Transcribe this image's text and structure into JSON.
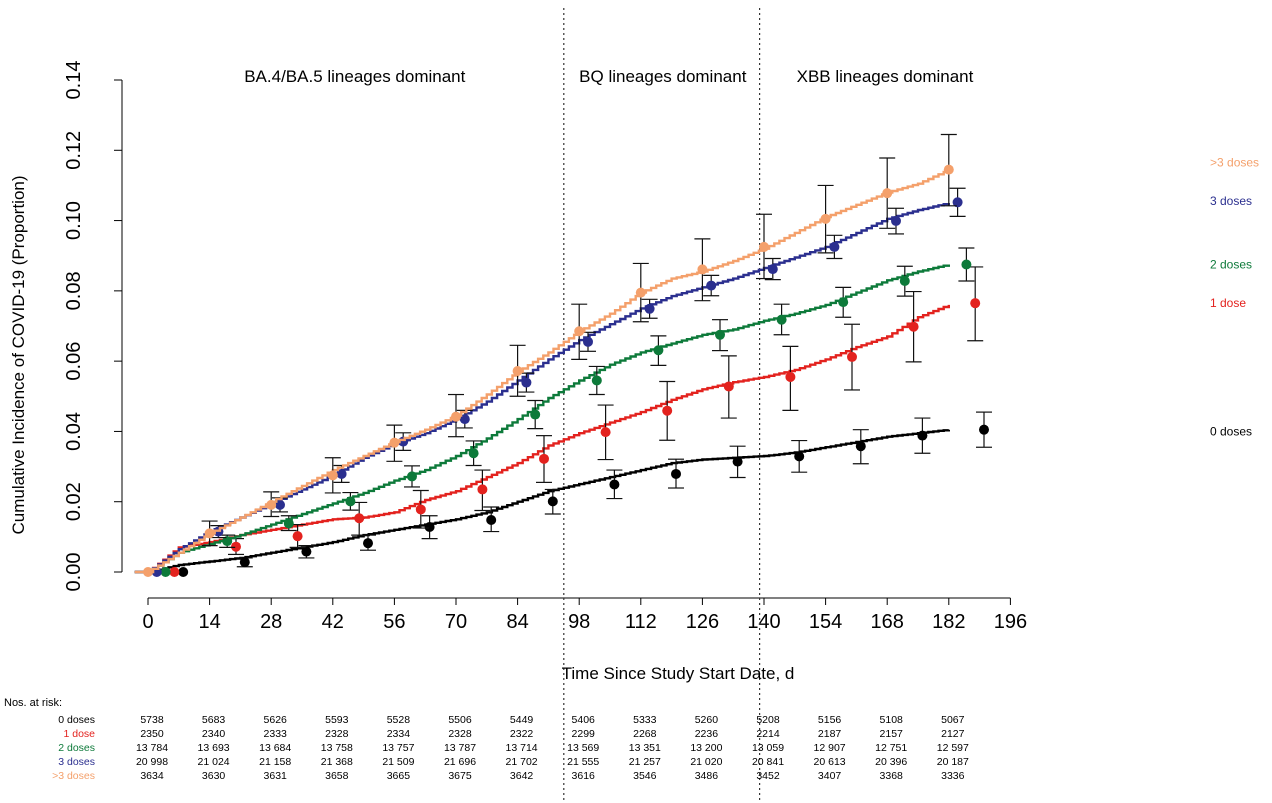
{
  "chart_data": {
    "type": "line",
    "xlabel": "Time Since Study Start Date, d",
    "ylabel": "Cumulative Incidence of COVID-19 (Proportion)",
    "xlim": [
      0,
      196
    ],
    "ylim": [
      0,
      0.14
    ],
    "x_ticks": [
      0,
      14,
      28,
      42,
      56,
      70,
      84,
      98,
      112,
      126,
      140,
      154,
      168,
      182,
      196
    ],
    "y_ticks": [
      "0.00",
      "0.02",
      "0.04",
      "0.06",
      "0.08",
      "0.10",
      "0.12",
      "0.14"
    ],
    "grid": false,
    "legend": "direct labels at right end of lines",
    "period_dividers": [
      94.5,
      139
    ],
    "periods": [
      {
        "label": "BA.4/BA.5 lineages dominant",
        "center": 47
      },
      {
        "label": "BQ lineages dominant",
        "center": 117
      },
      {
        "label": "XBB lineages dominant",
        "center": 167.5
      }
    ],
    "series": [
      {
        "name": "0 doses",
        "color": "#000000",
        "label_y": 0.04,
        "x": [
          0,
          7,
          14,
          21,
          28,
          35,
          42,
          49,
          56,
          63,
          70,
          77,
          84,
          91,
          98,
          105,
          112,
          119,
          126,
          133,
          140,
          147,
          154,
          161,
          168,
          175,
          182
        ],
        "y": [
          0,
          0.002,
          0.003,
          0.004,
          0.0055,
          0.007,
          0.0085,
          0.0105,
          0.012,
          0.0135,
          0.015,
          0.017,
          0.02,
          0.023,
          0.025,
          0.027,
          0.029,
          0.031,
          0.032,
          0.0325,
          0.033,
          0.034,
          0.0355,
          0.037,
          0.0385,
          0.0395,
          0.0405
        ],
        "points": [
          {
            "x": 8,
            "y": 0.0,
            "lo": 0.0,
            "hi": 0.0
          },
          {
            "x": 22,
            "y": 0.0028,
            "lo": 0.0015,
            "hi": 0.004
          },
          {
            "x": 36,
            "y": 0.0058,
            "lo": 0.004,
            "hi": 0.0075
          },
          {
            "x": 50,
            "y": 0.0082,
            "lo": 0.0062,
            "hi": 0.0105
          },
          {
            "x": 64,
            "y": 0.0128,
            "lo": 0.0095,
            "hi": 0.016
          },
          {
            "x": 78,
            "y": 0.0148,
            "lo": 0.0115,
            "hi": 0.0185
          },
          {
            "x": 92,
            "y": 0.0201,
            "lo": 0.0165,
            "hi": 0.0235
          },
          {
            "x": 106,
            "y": 0.0249,
            "lo": 0.0209,
            "hi": 0.029
          },
          {
            "x": 120,
            "y": 0.0279,
            "lo": 0.0239,
            "hi": 0.0321
          },
          {
            "x": 134,
            "y": 0.0314,
            "lo": 0.0269,
            "hi": 0.0358
          },
          {
            "x": 148,
            "y": 0.0329,
            "lo": 0.0284,
            "hi": 0.0374
          },
          {
            "x": 162,
            "y": 0.0358,
            "lo": 0.0308,
            "hi": 0.0405
          },
          {
            "x": 176,
            "y": 0.0388,
            "lo": 0.0338,
            "hi": 0.0438
          },
          {
            "x": 190,
            "y": 0.0405,
            "lo": 0.0355,
            "hi": 0.0455
          }
        ]
      },
      {
        "name": "1 dose",
        "color": "#e3221e",
        "label_y": 0.0765,
        "x": [
          0,
          7,
          14,
          21,
          28,
          35,
          42,
          49,
          56,
          63,
          70,
          77,
          84,
          91,
          98,
          105,
          112,
          119,
          126,
          133,
          140,
          147,
          154,
          161,
          168,
          175,
          182
        ],
        "y": [
          0,
          0.007,
          0.0085,
          0.0105,
          0.012,
          0.0135,
          0.015,
          0.0155,
          0.017,
          0.0205,
          0.023,
          0.027,
          0.031,
          0.036,
          0.0395,
          0.0425,
          0.0455,
          0.049,
          0.052,
          0.054,
          0.0555,
          0.0575,
          0.0605,
          0.064,
          0.067,
          0.0725,
          0.076
        ],
        "points": [
          {
            "x": 6,
            "y": 0.0,
            "lo": 0.0,
            "hi": 0.0
          },
          {
            "x": 20,
            "y": 0.0072,
            "lo": 0.005,
            "hi": 0.0095
          },
          {
            "x": 34,
            "y": 0.0102,
            "lo": 0.007,
            "hi": 0.0135
          },
          {
            "x": 48,
            "y": 0.0153,
            "lo": 0.0105,
            "hi": 0.0198
          },
          {
            "x": 62,
            "y": 0.0178,
            "lo": 0.0125,
            "hi": 0.0232
          },
          {
            "x": 76,
            "y": 0.0235,
            "lo": 0.0175,
            "hi": 0.029
          },
          {
            "x": 90,
            "y": 0.0322,
            "lo": 0.0255,
            "hi": 0.0388
          },
          {
            "x": 104,
            "y": 0.0398,
            "lo": 0.032,
            "hi": 0.0475
          },
          {
            "x": 118,
            "y": 0.0459,
            "lo": 0.0375,
            "hi": 0.0542
          },
          {
            "x": 132,
            "y": 0.0528,
            "lo": 0.0438,
            "hi": 0.0615
          },
          {
            "x": 146,
            "y": 0.0555,
            "lo": 0.046,
            "hi": 0.0642
          },
          {
            "x": 160,
            "y": 0.0612,
            "lo": 0.0518,
            "hi": 0.0705
          },
          {
            "x": 174,
            "y": 0.0698,
            "lo": 0.0598,
            "hi": 0.0798
          },
          {
            "x": 188,
            "y": 0.0765,
            "lo": 0.0658,
            "hi": 0.0868
          }
        ]
      },
      {
        "name": "2 doses",
        "color": "#0d7a3a",
        "label_y": 0.0875,
        "x": [
          0,
          7,
          14,
          21,
          28,
          35,
          42,
          49,
          56,
          63,
          70,
          77,
          84,
          91,
          98,
          105,
          112,
          119,
          126,
          133,
          140,
          147,
          154,
          161,
          168,
          175,
          182
        ],
        "y": [
          0,
          0.0055,
          0.008,
          0.0105,
          0.0135,
          0.0165,
          0.0195,
          0.0225,
          0.026,
          0.029,
          0.033,
          0.038,
          0.0435,
          0.0495,
          0.0545,
          0.059,
          0.0625,
          0.065,
          0.0675,
          0.069,
          0.0715,
          0.0735,
          0.076,
          0.0795,
          0.083,
          0.0855,
          0.0875
        ],
        "points": [
          {
            "x": 4,
            "y": 0.0,
            "lo": 0.0,
            "hi": 0.0
          },
          {
            "x": 18,
            "y": 0.0088,
            "lo": 0.007,
            "hi": 0.0105
          },
          {
            "x": 32,
            "y": 0.0138,
            "lo": 0.0118,
            "hi": 0.016
          },
          {
            "x": 46,
            "y": 0.0201,
            "lo": 0.0176,
            "hi": 0.0226
          },
          {
            "x": 60,
            "y": 0.0272,
            "lo": 0.0242,
            "hi": 0.0302
          },
          {
            "x": 74,
            "y": 0.0338,
            "lo": 0.0303,
            "hi": 0.0373
          },
          {
            "x": 88,
            "y": 0.0448,
            "lo": 0.0408,
            "hi": 0.0488
          },
          {
            "x": 102,
            "y": 0.0545,
            "lo": 0.0505,
            "hi": 0.0585
          },
          {
            "x": 116,
            "y": 0.0631,
            "lo": 0.0588,
            "hi": 0.0672
          },
          {
            "x": 130,
            "y": 0.0675,
            "lo": 0.063,
            "hi": 0.0718
          },
          {
            "x": 144,
            "y": 0.0718,
            "lo": 0.0675,
            "hi": 0.0762
          },
          {
            "x": 158,
            "y": 0.0768,
            "lo": 0.0725,
            "hi": 0.081
          },
          {
            "x": 172,
            "y": 0.0828,
            "lo": 0.0785,
            "hi": 0.087
          },
          {
            "x": 186,
            "y": 0.0875,
            "lo": 0.0828,
            "hi": 0.0922
          }
        ]
      },
      {
        "name": "3 doses",
        "color": "#2b2f8f",
        "label_y": 0.1055,
        "x": [
          0,
          7,
          14,
          21,
          28,
          35,
          42,
          49,
          56,
          63,
          70,
          77,
          84,
          91,
          98,
          105,
          112,
          119,
          126,
          133,
          140,
          147,
          154,
          161,
          168,
          175,
          182
        ],
        "y": [
          0,
          0.0065,
          0.0115,
          0.0155,
          0.0195,
          0.0235,
          0.0275,
          0.0325,
          0.0365,
          0.0395,
          0.0435,
          0.0485,
          0.0545,
          0.0605,
          0.066,
          0.0705,
          0.075,
          0.0785,
          0.081,
          0.0835,
          0.0865,
          0.0895,
          0.0925,
          0.0965,
          0.1005,
          0.103,
          0.105
        ],
        "points": [
          {
            "x": 2,
            "y": 0.0,
            "lo": 0.0,
            "hi": 0.0
          },
          {
            "x": 16,
            "y": 0.0115,
            "lo": 0.0098,
            "hi": 0.0132
          },
          {
            "x": 30,
            "y": 0.0191,
            "lo": 0.0171,
            "hi": 0.0211
          },
          {
            "x": 44,
            "y": 0.0279,
            "lo": 0.0255,
            "hi": 0.0303
          },
          {
            "x": 58,
            "y": 0.0371,
            "lo": 0.0346,
            "hi": 0.0396
          },
          {
            "x": 72,
            "y": 0.0435,
            "lo": 0.041,
            "hi": 0.046
          },
          {
            "x": 86,
            "y": 0.0539,
            "lo": 0.0512,
            "hi": 0.0566
          },
          {
            "x": 100,
            "y": 0.0655,
            "lo": 0.0628,
            "hi": 0.0682
          },
          {
            "x": 114,
            "y": 0.0749,
            "lo": 0.0722,
            "hi": 0.0776
          },
          {
            "x": 128,
            "y": 0.0815,
            "lo": 0.0786,
            "hi": 0.0844
          },
          {
            "x": 142,
            "y": 0.0862,
            "lo": 0.0832,
            "hi": 0.0892
          },
          {
            "x": 156,
            "y": 0.0925,
            "lo": 0.0892,
            "hi": 0.0958
          },
          {
            "x": 170,
            "y": 0.0999,
            "lo": 0.0962,
            "hi": 0.1035
          },
          {
            "x": 184,
            "y": 0.1052,
            "lo": 0.1012,
            "hi": 0.1092
          }
        ]
      },
      {
        "name": ">3 doses",
        "color": "#f4a06b",
        "label_y": 0.1165,
        "x": [
          0,
          7,
          14,
          21,
          28,
          35,
          42,
          49,
          56,
          63,
          70,
          77,
          84,
          91,
          98,
          105,
          112,
          119,
          126,
          133,
          140,
          147,
          154,
          161,
          168,
          175,
          182
        ],
        "y": [
          0,
          0.0055,
          0.011,
          0.0155,
          0.02,
          0.0245,
          0.029,
          0.033,
          0.037,
          0.0405,
          0.0445,
          0.0505,
          0.057,
          0.0625,
          0.0685,
          0.0735,
          0.0795,
          0.0835,
          0.0855,
          0.0885,
          0.092,
          0.0965,
          0.101,
          0.1045,
          0.108,
          0.1105,
          0.1145
        ],
        "points": [
          {
            "x": 0,
            "y": 0.0,
            "lo": 0.0,
            "hi": 0.0
          },
          {
            "x": 14,
            "y": 0.011,
            "lo": 0.0075,
            "hi": 0.0145
          },
          {
            "x": 28,
            "y": 0.0191,
            "lo": 0.0158,
            "hi": 0.0228
          },
          {
            "x": 42,
            "y": 0.0275,
            "lo": 0.0225,
            "hi": 0.0325
          },
          {
            "x": 56,
            "y": 0.0368,
            "lo": 0.0315,
            "hi": 0.0418
          },
          {
            "x": 70,
            "y": 0.0442,
            "lo": 0.0385,
            "hi": 0.0505
          },
          {
            "x": 84,
            "y": 0.0572,
            "lo": 0.05,
            "hi": 0.0645
          },
          {
            "x": 98,
            "y": 0.0685,
            "lo": 0.0605,
            "hi": 0.0762
          },
          {
            "x": 112,
            "y": 0.0795,
            "lo": 0.0712,
            "hi": 0.0878
          },
          {
            "x": 126,
            "y": 0.0861,
            "lo": 0.0772,
            "hi": 0.0948
          },
          {
            "x": 140,
            "y": 0.0925,
            "lo": 0.0835,
            "hi": 0.1018
          },
          {
            "x": 154,
            "y": 0.1005,
            "lo": 0.0908,
            "hi": 0.11
          },
          {
            "x": 168,
            "y": 0.1078,
            "lo": 0.0978,
            "hi": 0.1178
          },
          {
            "x": 182,
            "y": 0.1145,
            "lo": 0.1042,
            "hi": 0.1245
          }
        ]
      }
    ],
    "risk_table": {
      "title": "Nos. at risk:",
      "days": [
        0,
        14,
        28,
        42,
        56,
        70,
        84,
        98,
        112,
        126,
        140,
        154,
        168,
        182
      ],
      "rows": [
        {
          "label": "0 doses",
          "color": "#000000",
          "values": [
            "5738",
            "5683",
            "5626",
            "5593",
            "5528",
            "5506",
            "5449",
            "5406",
            "5333",
            "5260",
            "5208",
            "5156",
            "5108",
            "5067"
          ]
        },
        {
          "label": "1 dose",
          "color": "#e3221e",
          "values": [
            "2350",
            "2340",
            "2333",
            "2328",
            "2334",
            "2328",
            "2322",
            "2299",
            "2268",
            "2236",
            "2214",
            "2187",
            "2157",
            "2127"
          ]
        },
        {
          "label": "2 doses",
          "color": "#0d7a3a",
          "values": [
            "13 784",
            "13 693",
            "13 684",
            "13 758",
            "13 757",
            "13 787",
            "13 714",
            "13 569",
            "13 351",
            "13 200",
            "13 059",
            "12 907",
            "12 751",
            "12 597"
          ]
        },
        {
          "label": "3 doses",
          "color": "#2b2f8f",
          "values": [
            "20 998",
            "21 024",
            "21 158",
            "21 368",
            "21 509",
            "21 696",
            "21 702",
            "21 555",
            "21 257",
            "21 020",
            "20 841",
            "20 613",
            "20 396",
            "20 187"
          ]
        },
        {
          "label": ">3 doses",
          "color": "#f4a06b",
          "values": [
            "3634",
            "3630",
            "3631",
            "3658",
            "3665",
            "3675",
            "3642",
            "3616",
            "3546",
            "3486",
            "3452",
            "3407",
            "3368",
            "3336"
          ]
        }
      ]
    }
  }
}
